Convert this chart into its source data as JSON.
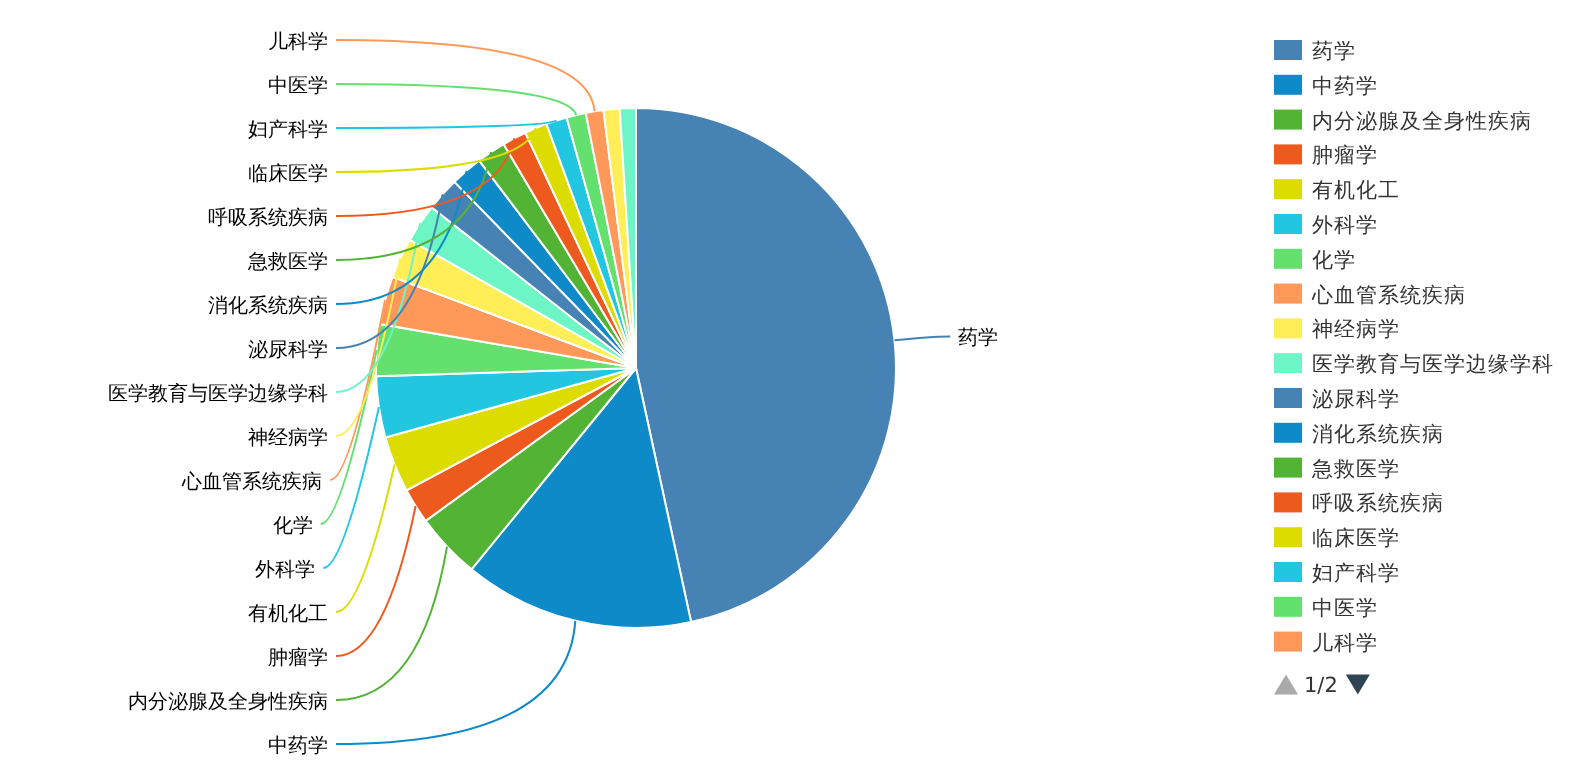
{
  "chart_data": {
    "type": "pie",
    "categories": [
      "药学",
      "中药学",
      "内分泌腺及全身性疾病",
      "肿瘤学",
      "有机化工",
      "外科学",
      "化学",
      "心血管系统疾病",
      "神经病学",
      "医学教育与医学边缘学科",
      "泌尿科学",
      "消化系统疾病",
      "急救医学",
      "呼吸系统疾病",
      "临床医学",
      "妇产科学",
      "中医学",
      "儿科学",
      null,
      null
    ],
    "values": [
      46.6,
      14.3,
      4.1,
      2.2,
      3.5,
      3.8,
      3.2,
      3.0,
      2.5,
      2.4,
      2.1,
      2.0,
      1.8,
      1.5,
      1.4,
      1.3,
      1.2,
      1.1,
      1.0,
      1.0
    ],
    "colors": [
      "#4682b4",
      "#0e8ac8",
      "#52b335",
      "#ee5a1e",
      "#dcdc00",
      "#22c6e0",
      "#63e06d",
      "#ff9859",
      "#ffee55",
      "#6ef5c5",
      "#4682b4",
      "#0e8ac8",
      "#52b335",
      "#ee5a1e",
      "#dcdc00",
      "#22c6e0",
      "#63e06d",
      "#ff9859",
      "#ffee55",
      "#6ef5c5"
    ],
    "legend": "right",
    "annotations": [
      "1/2"
    ]
  }
}
